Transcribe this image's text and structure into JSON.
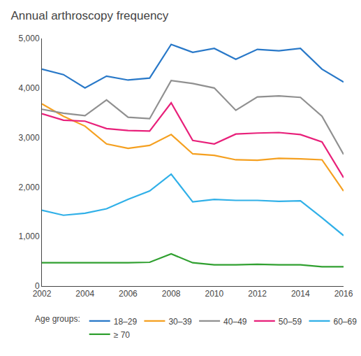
{
  "chart_data": {
    "type": "line",
    "title": "Annual arthroscopy frequency",
    "legend_title": "Age groups:",
    "x": [
      2002,
      2003,
      2004,
      2005,
      2006,
      2007,
      2008,
      2009,
      2010,
      2011,
      2012,
      2013,
      2014,
      2015,
      2016
    ],
    "series": [
      {
        "name": "18–29",
        "color": "#2878C8",
        "values": [
          4380,
          4270,
          4000,
          4240,
          4160,
          4200,
          4880,
          4720,
          4800,
          4580,
          4780,
          4750,
          4800,
          4380,
          4120
        ]
      },
      {
        "name": "30–39",
        "color": "#F5A020",
        "values": [
          3680,
          3430,
          3230,
          2870,
          2780,
          2840,
          3060,
          2670,
          2640,
          2550,
          2540,
          2580,
          2570,
          2550,
          1920
        ]
      },
      {
        "name": "40–49",
        "color": "#909090",
        "values": [
          3570,
          3490,
          3440,
          3760,
          3410,
          3380,
          4150,
          4090,
          4000,
          3550,
          3820,
          3840,
          3810,
          3430,
          2660
        ]
      },
      {
        "name": "50–59",
        "color": "#E8207A",
        "values": [
          3480,
          3350,
          3330,
          3180,
          3140,
          3130,
          3700,
          2940,
          2870,
          3070,
          3090,
          3100,
          3060,
          2910,
          2190
        ]
      },
      {
        "name": "60–69",
        "color": "#30B0E8",
        "values": [
          1530,
          1430,
          1470,
          1560,
          1750,
          1920,
          2260,
          1700,
          1750,
          1730,
          1730,
          1710,
          1720,
          1380,
          1020
        ]
      },
      {
        "name": "≥ 70",
        "color": "#30A030",
        "values": [
          470,
          470,
          470,
          460,
          470,
          480,
          650,
          470,
          430,
          430,
          440,
          430,
          430,
          390,
          390
        ]
      }
    ],
    "xlim": [
      2002,
      2016
    ],
    "xticks": [
      2002,
      2004,
      2006,
      2008,
      2010,
      2012,
      2014,
      2016
    ],
    "ylim": [
      0,
      5000
    ],
    "yticks": [
      0,
      {
        "value": 1000,
        "label": "1,000"
      },
      {
        "value": 2000,
        "label": "2,000"
      },
      {
        "value": 3000,
        "label": "3,000"
      },
      {
        "value": 4000,
        "label": "4,000"
      },
      {
        "value": 5000,
        "label": "5,000"
      }
    ],
    "grid": false,
    "legend": "bottom"
  }
}
